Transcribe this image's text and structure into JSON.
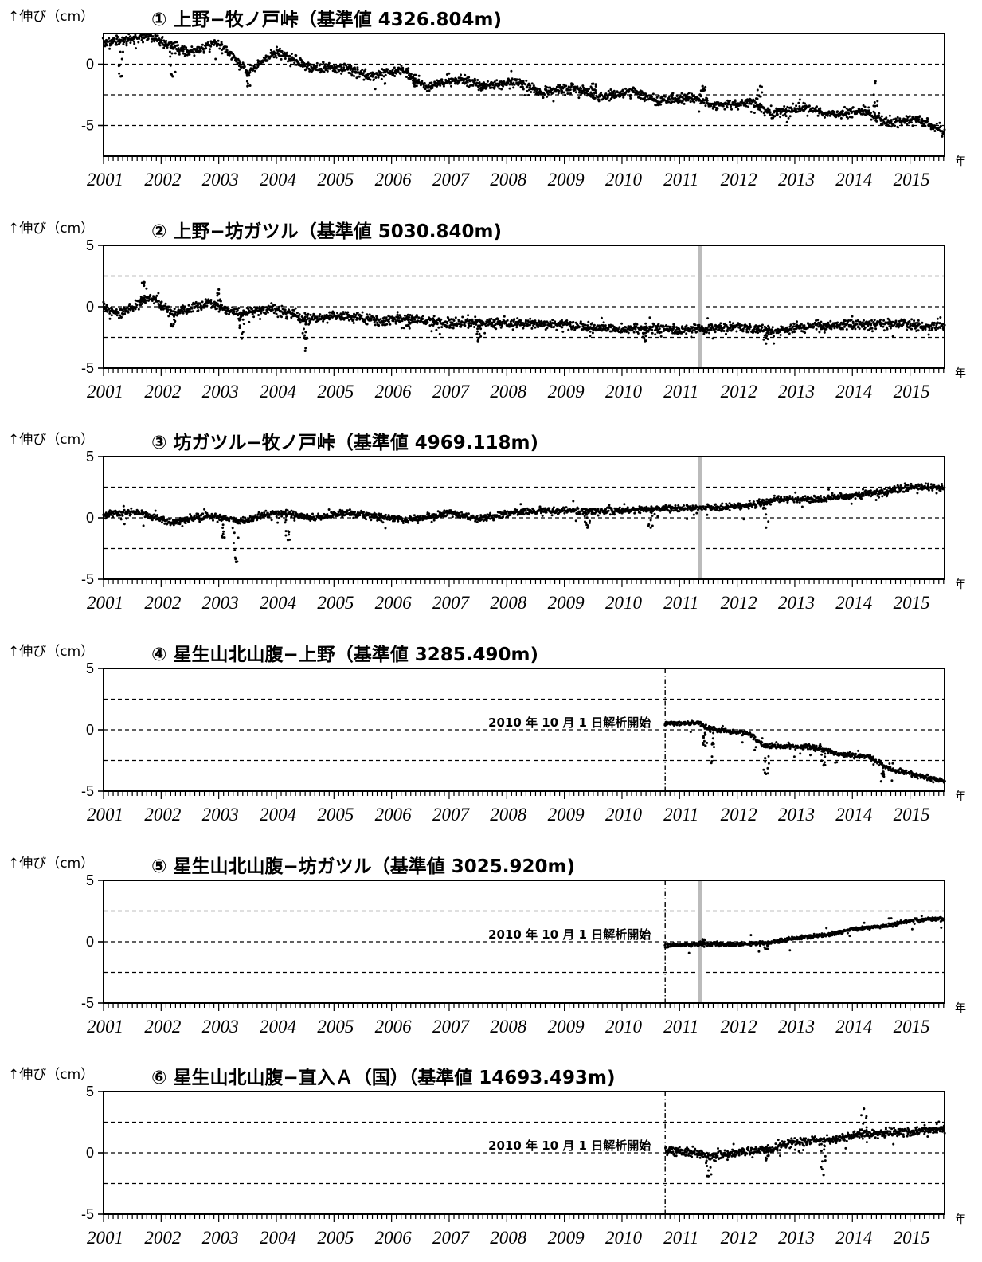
{
  "chart_data": [
    {
      "type": "scatter",
      "title": "① 上野−牧ノ戸峠（基準値 4326.804m)",
      "ylabel": "↑伸び（cm）",
      "xunit": "年",
      "x_range": [
        2001,
        2015.6
      ],
      "ylim": [
        -7.5,
        2.5
      ],
      "yticks": [
        {
          "v": 0,
          "label": "0"
        },
        {
          "v": -5,
          "label": "-5"
        }
      ],
      "gridlines_y": [
        0,
        -2.5,
        -5
      ],
      "start_date": null,
      "note": "",
      "gap_bar": null,
      "noise": 0.35,
      "trend": [
        [
          2001.0,
          1.8
        ],
        [
          2001.8,
          2.2
        ],
        [
          2002.5,
          0.9
        ],
        [
          2003.0,
          1.8
        ],
        [
          2003.5,
          -0.6
        ],
        [
          2004.0,
          1.0
        ],
        [
          2004.6,
          -0.3
        ],
        [
          2005.2,
          -0.3
        ],
        [
          2005.6,
          -1.0
        ],
        [
          2006.2,
          -0.5
        ],
        [
          2006.6,
          -1.8
        ],
        [
          2007.2,
          -1.2
        ],
        [
          2007.6,
          -1.8
        ],
        [
          2008.2,
          -1.4
        ],
        [
          2008.6,
          -2.3
        ],
        [
          2009.2,
          -1.9
        ],
        [
          2009.6,
          -2.7
        ],
        [
          2010.2,
          -2.2
        ],
        [
          2010.6,
          -3.0
        ],
        [
          2011.2,
          -2.7
        ],
        [
          2011.6,
          -3.4
        ],
        [
          2012.2,
          -3.1
        ],
        [
          2012.6,
          -4.0
        ],
        [
          2013.2,
          -3.5
        ],
        [
          2013.6,
          -4.1
        ],
        [
          2014.2,
          -3.8
        ],
        [
          2014.6,
          -4.8
        ],
        [
          2015.1,
          -4.5
        ],
        [
          2015.6,
          -5.4
        ]
      ],
      "dips": [
        [
          2001.3,
          -1.0
        ],
        [
          2002.2,
          -1.0
        ],
        [
          2003.5,
          -1.8
        ],
        [
          2006.4,
          -1.8
        ],
        [
          2007.6,
          -1.6
        ],
        [
          2009.5,
          -1.6
        ],
        [
          2011.4,
          -1.8
        ],
        [
          2012.4,
          -1.8
        ],
        [
          2014.4,
          -1.4
        ]
      ]
    },
    {
      "type": "scatter",
      "title": "② 上野−坊ガツル（基準値 5030.840m)",
      "ylabel": "↑伸び（cm）",
      "xunit": "年",
      "x_range": [
        2001,
        2015.6
      ],
      "ylim": [
        -5,
        5
      ],
      "yticks": [
        {
          "v": 5,
          "label": "5"
        },
        {
          "v": 0,
          "label": "0"
        },
        {
          "v": -5,
          "label": "-5"
        }
      ],
      "gridlines_y": [
        2.5,
        0,
        -2.5
      ],
      "start_date": null,
      "note": "",
      "gap_bar": 2011.35,
      "noise": 0.35,
      "trend": [
        [
          2001.0,
          0.0
        ],
        [
          2001.3,
          -0.6
        ],
        [
          2001.8,
          0.8
        ],
        [
          2002.2,
          -0.6
        ],
        [
          2002.8,
          0.3
        ],
        [
          2003.4,
          -0.6
        ],
        [
          2003.9,
          -0.1
        ],
        [
          2004.5,
          -1.0
        ],
        [
          2005.2,
          -0.7
        ],
        [
          2005.8,
          -1.2
        ],
        [
          2006.3,
          -0.9
        ],
        [
          2006.9,
          -1.4
        ],
        [
          2007.5,
          -1.3
        ],
        [
          2008.1,
          -1.3
        ],
        [
          2009.0,
          -1.5
        ],
        [
          2010.0,
          -1.9
        ],
        [
          2010.5,
          -1.7
        ],
        [
          2011.0,
          -1.9
        ],
        [
          2012.0,
          -1.6
        ],
        [
          2012.6,
          -2.0
        ],
        [
          2013.3,
          -1.6
        ],
        [
          2014.0,
          -1.5
        ],
        [
          2014.6,
          -1.4
        ],
        [
          2015.6,
          -1.6
        ]
      ],
      "dips": [
        [
          2001.7,
          2.0
        ],
        [
          2003.0,
          1.4
        ],
        [
          2002.2,
          -1.6
        ],
        [
          2003.4,
          -2.6
        ],
        [
          2004.5,
          -3.6
        ],
        [
          2006.3,
          -1.6
        ],
        [
          2007.5,
          -2.8
        ],
        [
          2010.4,
          -2.8
        ],
        [
          2011.4,
          -2.0
        ],
        [
          2012.5,
          -3.0
        ],
        [
          2013.6,
          -1.6
        ]
      ]
    },
    {
      "type": "scatter",
      "title": "③ 坊ガツル−牧ノ戸峠（基準値 4969.118m)",
      "ylabel": "↑伸び（cm）",
      "xunit": "年",
      "x_range": [
        2001,
        2015.6
      ],
      "ylim": [
        -5,
        5
      ],
      "yticks": [
        {
          "v": 5,
          "label": "5"
        },
        {
          "v": 0,
          "label": "0"
        },
        {
          "v": -5,
          "label": "-5"
        }
      ],
      "gridlines_y": [
        2.5,
        0,
        -2.5
      ],
      "start_date": null,
      "note": "",
      "gap_bar": 2011.35,
      "noise": 0.25,
      "trend": [
        [
          2001.0,
          0.3
        ],
        [
          2001.6,
          0.5
        ],
        [
          2002.2,
          -0.4
        ],
        [
          2002.8,
          0.2
        ],
        [
          2003.4,
          -0.3
        ],
        [
          2004.0,
          0.5
        ],
        [
          2004.6,
          0.0
        ],
        [
          2005.2,
          0.4
        ],
        [
          2005.8,
          0.1
        ],
        [
          2006.3,
          -0.2
        ],
        [
          2007.0,
          0.4
        ],
        [
          2007.5,
          -0.1
        ],
        [
          2008.2,
          0.5
        ],
        [
          2009.0,
          0.6
        ],
        [
          2009.6,
          0.5
        ],
        [
          2010.3,
          0.7
        ],
        [
          2011.0,
          0.8
        ],
        [
          2011.5,
          0.8
        ],
        [
          2012.2,
          1.0
        ],
        [
          2012.7,
          1.5
        ],
        [
          2013.3,
          1.5
        ],
        [
          2014.0,
          1.8
        ],
        [
          2014.6,
          2.1
        ],
        [
          2015.0,
          2.6
        ],
        [
          2015.6,
          2.4
        ]
      ],
      "dips": [
        [
          2003.3,
          -3.6
        ],
        [
          2003.1,
          -1.6
        ],
        [
          2004.2,
          -1.8
        ],
        [
          2009.4,
          -0.8
        ],
        [
          2010.5,
          -0.8
        ],
        [
          2012.5,
          -0.8
        ],
        [
          2014.0,
          1.9
        ]
      ]
    },
    {
      "type": "scatter",
      "title": "④ 星生山北山腹−上野（基準値 3285.490m)",
      "ylabel": "↑伸び（cm）",
      "xunit": "年",
      "x_range": [
        2001,
        2015.6
      ],
      "ylim": [
        -5,
        5
      ],
      "yticks": [
        {
          "v": 5,
          "label": "5"
        },
        {
          "v": 0,
          "label": "0"
        },
        {
          "v": -5,
          "label": "-5"
        }
      ],
      "gridlines_y": [
        2.5,
        0,
        -2.5
      ],
      "start_date": 2010.75,
      "note": "2010 年 10 月 1 日解析開始",
      "gap_bar": null,
      "noise": 0.18,
      "trend": [
        [
          2010.75,
          0.5
        ],
        [
          2011.3,
          0.6
        ],
        [
          2011.5,
          0.1
        ],
        [
          2012.2,
          -0.3
        ],
        [
          2012.5,
          -1.3
        ],
        [
          2013.3,
          -1.4
        ],
        [
          2013.8,
          -2.0
        ],
        [
          2014.3,
          -2.2
        ],
        [
          2014.6,
          -3.1
        ],
        [
          2015.2,
          -3.8
        ],
        [
          2015.6,
          -4.2
        ]
      ],
      "dips": [
        [
          2011.45,
          -1.3
        ],
        [
          2011.55,
          -2.7
        ],
        [
          2012.5,
          -3.6
        ],
        [
          2013.5,
          -2.9
        ],
        [
          2014.5,
          -4.2
        ]
      ]
    },
    {
      "type": "scatter",
      "title": "⑤ 星生山北山腹−坊ガツル（基準値 3025.920m)",
      "ylabel": "↑伸び（cm）",
      "xunit": "年",
      "x_range": [
        2001,
        2015.6
      ],
      "ylim": [
        -5,
        5
      ],
      "yticks": [
        {
          "v": 5,
          "label": "5"
        },
        {
          "v": 0,
          "label": "0"
        },
        {
          "v": -5,
          "label": "-5"
        }
      ],
      "gridlines_y": [
        2.5,
        0,
        -2.5
      ],
      "start_date": 2010.75,
      "note": "2010 年 10 月 1 日解析開始",
      "gap_bar": 2011.35,
      "noise": 0.15,
      "trend": [
        [
          2010.75,
          -0.3
        ],
        [
          2011.4,
          -0.2
        ],
        [
          2012.0,
          -0.2
        ],
        [
          2012.5,
          -0.1
        ],
        [
          2013.0,
          0.3
        ],
        [
          2013.6,
          0.6
        ],
        [
          2014.0,
          1.0
        ],
        [
          2014.6,
          1.3
        ],
        [
          2015.0,
          1.7
        ],
        [
          2015.6,
          1.9
        ]
      ],
      "dips": [
        [
          2011.4,
          0.2
        ],
        [
          2012.5,
          -0.6
        ]
      ]
    },
    {
      "type": "scatter",
      "title": "⑥ 星生山北山腹−直入Ａ（国）（基準値 14693.493m)",
      "ylabel": "↑伸び（cm）",
      "xunit": "年",
      "x_range": [
        2001,
        2015.6
      ],
      "ylim": [
        -5,
        5
      ],
      "yticks": [
        {
          "v": 5,
          "label": "5"
        },
        {
          "v": 0,
          "label": "0"
        },
        {
          "v": -5,
          "label": "-5"
        }
      ],
      "gridlines_y": [
        2.5,
        0,
        -2.5
      ],
      "start_date": 2010.75,
      "note": "2010 年 10 月 1 日解析開始",
      "gap_bar": null,
      "noise": 0.3,
      "trend": [
        [
          2010.75,
          0.2
        ],
        [
          2011.3,
          0.0
        ],
        [
          2011.6,
          -0.4
        ],
        [
          2012.0,
          0.1
        ],
        [
          2012.6,
          0.3
        ],
        [
          2013.0,
          0.9
        ],
        [
          2013.6,
          1.0
        ],
        [
          2014.0,
          1.4
        ],
        [
          2014.6,
          1.6
        ],
        [
          2015.1,
          1.8
        ],
        [
          2015.6,
          2.0
        ]
      ],
      "dips": [
        [
          2011.5,
          -1.9
        ],
        [
          2013.5,
          -1.8
        ],
        [
          2014.2,
          3.6
        ],
        [
          2012.5,
          -0.6
        ]
      ]
    }
  ],
  "x_tick_labels": [
    "2001",
    "2002",
    "2003",
    "2004",
    "2005",
    "2006",
    "2007",
    "2008",
    "2009",
    "2010",
    "2011",
    "2012",
    "2013",
    "2014",
    "2015"
  ]
}
